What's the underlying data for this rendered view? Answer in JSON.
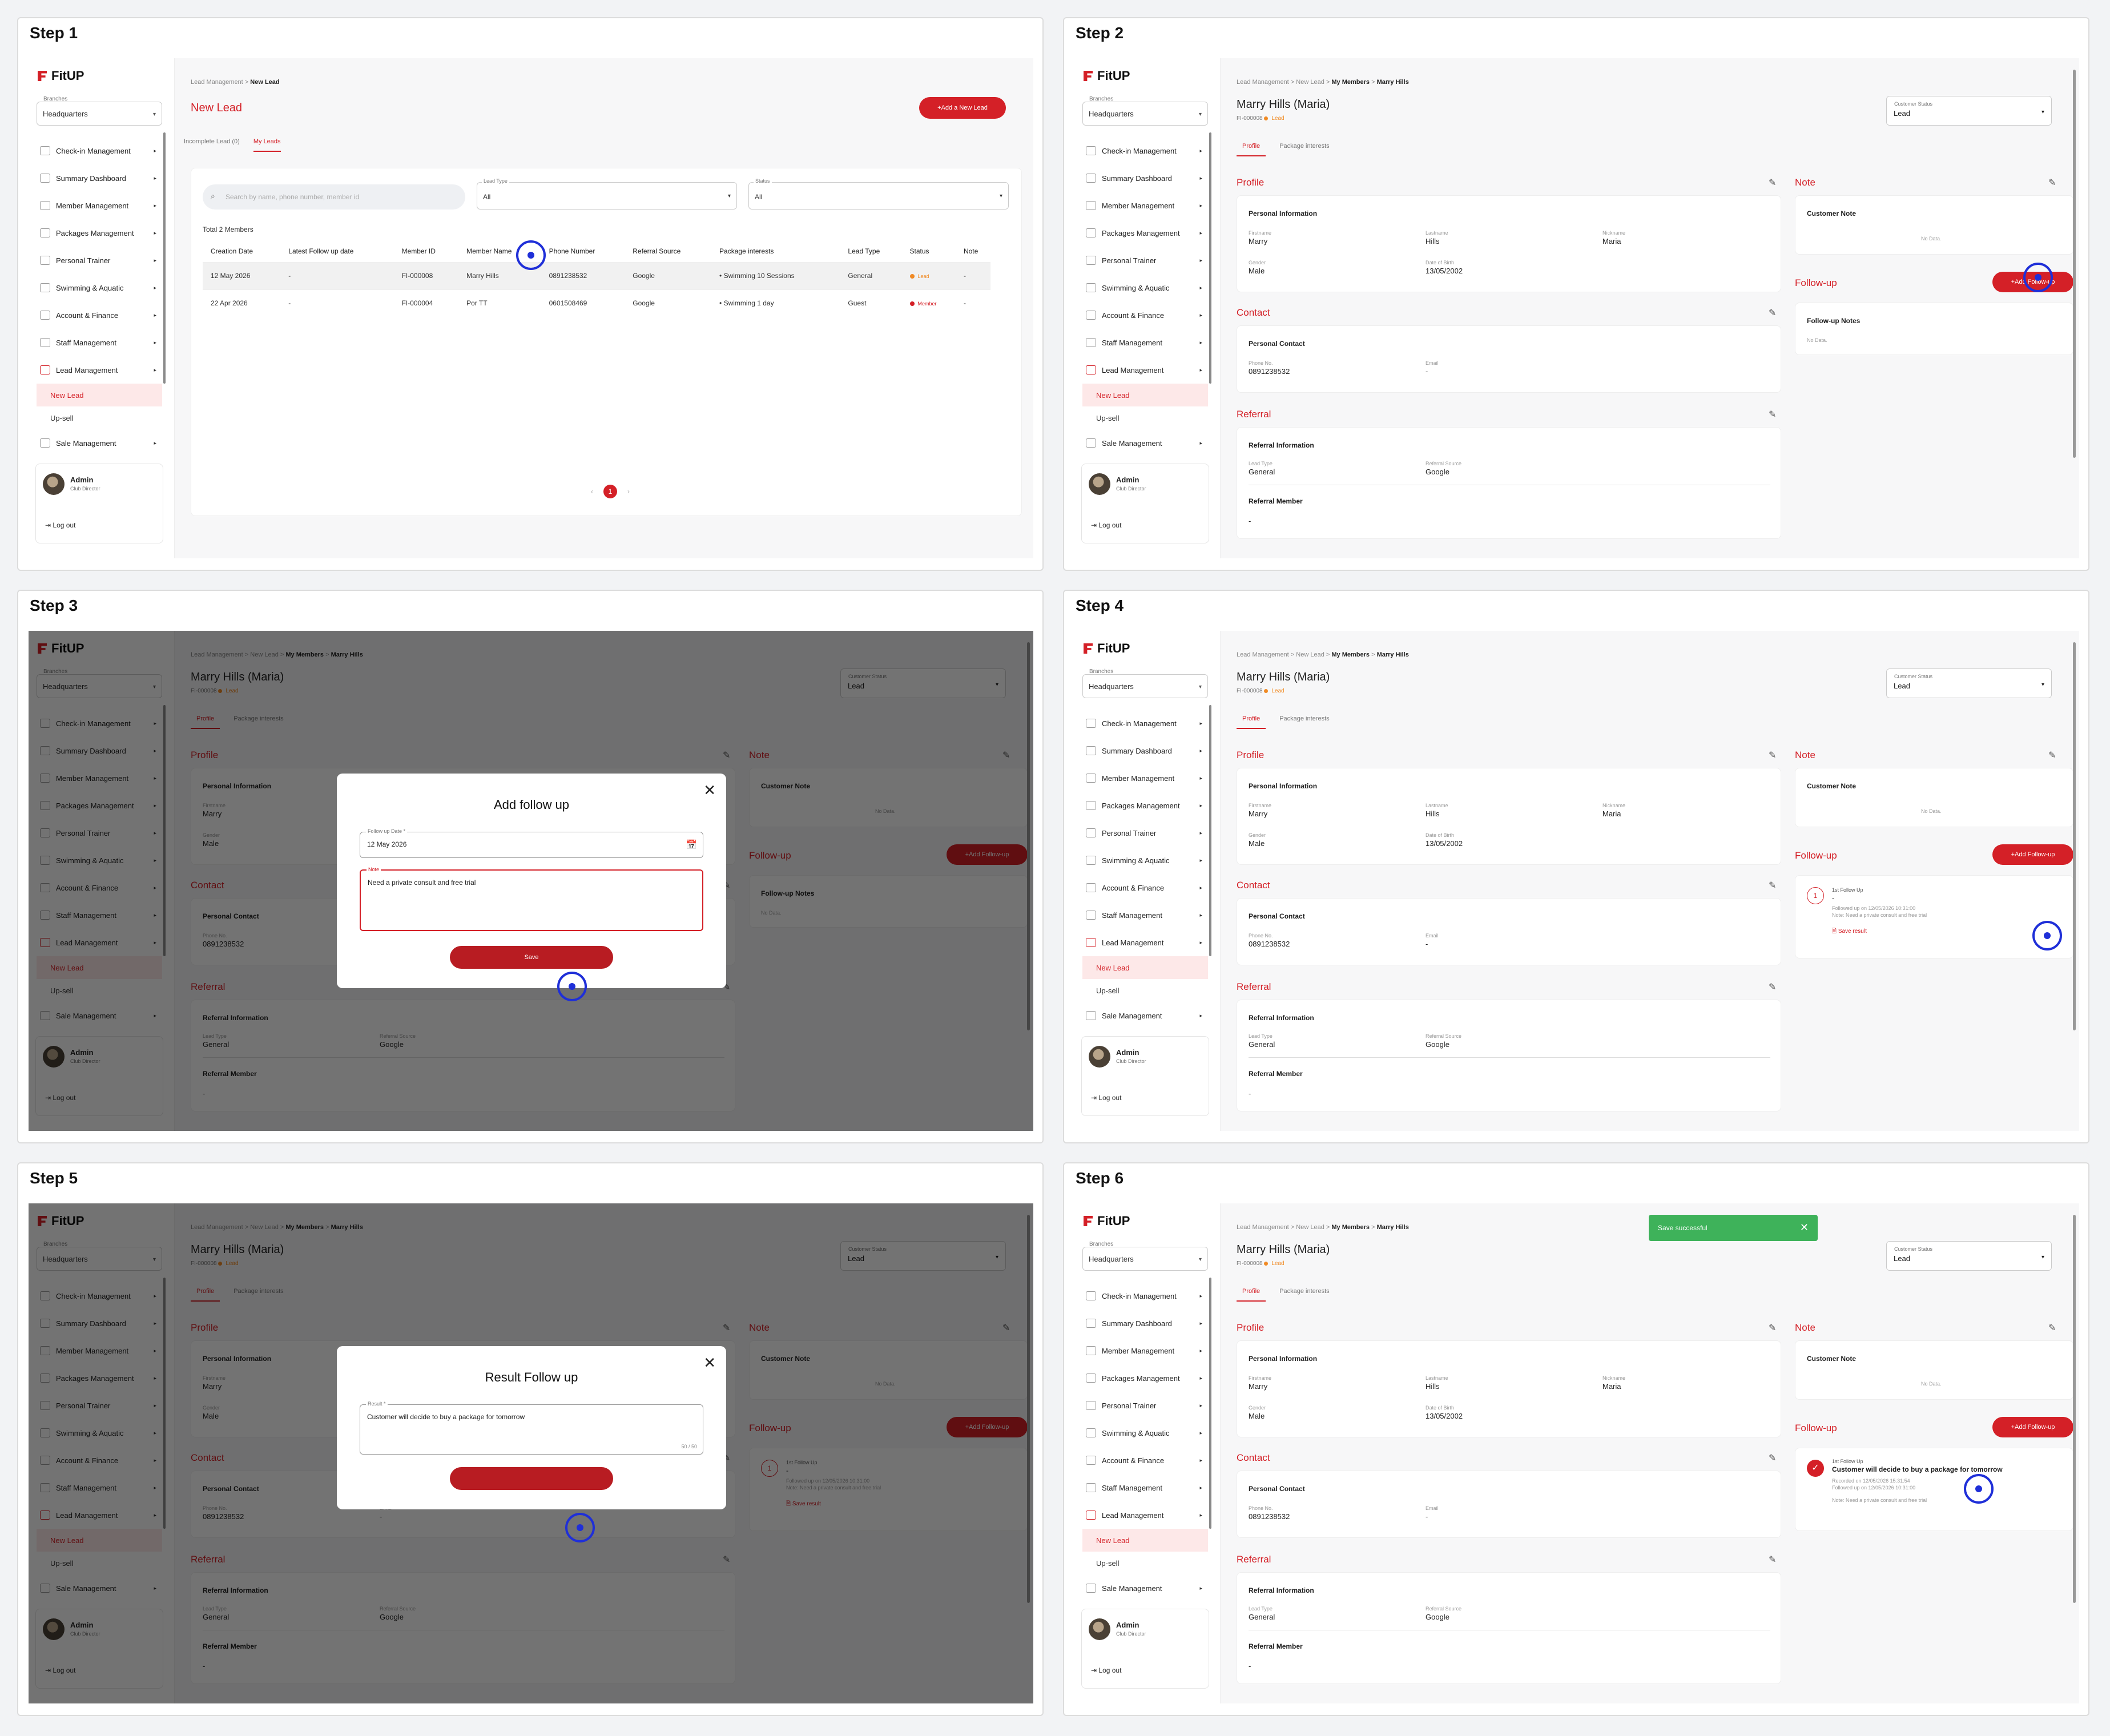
{
  "steps": [
    {
      "title": "Step 1"
    },
    {
      "title": "Step 2"
    },
    {
      "title": "Step 3"
    },
    {
      "title": "Step 4"
    },
    {
      "title": "Step 5"
    },
    {
      "title": "Step 6"
    }
  ],
  "app": {
    "logo": "FitUP",
    "branch_label": "Branches",
    "branch_value": "Headquarters",
    "nav": [
      "Check-in Management",
      "Summary Dashboard",
      "Member Management",
      "Packages Management",
      "Personal Trainer",
      "Swimming & Aquatic",
      "Account & Finance",
      "Staff Management",
      "Lead Management"
    ],
    "nav_sub": [
      "New Lead",
      "Up-sell"
    ],
    "nav_after": "Sale Management",
    "user_name": "Admin",
    "user_role": "Club Director",
    "logout": "Log out"
  },
  "leads": {
    "crumb_root": "Lead Management",
    "crumb_current": "New Lead",
    "title": "New Lead",
    "add_button": "Add a New Lead",
    "tabs": [
      "Incomplete Lead (0)",
      "My Leads"
    ],
    "search_placeholder": "Search by name, phone number, member id",
    "lead_type_label": "Lead Type",
    "lead_type_value": "All",
    "status_label": "Status",
    "status_value": "All",
    "total": "Total 2 Members",
    "columns": [
      "Creation Date",
      "Latest Follow up date",
      "Member ID",
      "Member Name",
      "Phone Number",
      "Referral Source",
      "Package interests",
      "Lead Type",
      "Status",
      "Note"
    ],
    "rows": [
      [
        "12 May 2026",
        "-",
        "FI-000008",
        "Marry Hills",
        "0891238532",
        "Google",
        "Swimming 10 Sessions",
        "General",
        "Lead",
        "-"
      ],
      [
        "22 Apr 2026",
        "-",
        "FI-000004",
        "Por TT",
        "0601508469",
        "Google",
        "Swimming 1 day",
        "Guest",
        "Member",
        "-"
      ]
    ],
    "page": "1"
  },
  "member": {
    "crumb": [
      "Lead Management",
      "New Lead",
      "My Members",
      "Marry Hills"
    ],
    "name": "Marry Hills (Maria)",
    "id": "FI-000008",
    "status": "Lead",
    "cs_label": "Customer Status",
    "cs_value": "Lead",
    "tabs": [
      "Profile",
      "Package interests"
    ],
    "profile_head": "Profile",
    "personal_info": "Personal Information",
    "firstname_lbl": "Firstname",
    "firstname": "Marry",
    "lastname_lbl": "Lastname",
    "lastname": "Hills",
    "nickname_lbl": "Nickname",
    "nickname": "Maria",
    "gender_lbl": "Gender",
    "gender": "Male",
    "dob_lbl": "Date of Birth",
    "dob": "13/05/2002",
    "contact_head": "Contact",
    "personal_contact": "Personal Contact",
    "phone_lbl": "Phone No.",
    "phone": "0891238532",
    "email_lbl": "Email",
    "email": "-",
    "referral_head": "Referral",
    "referral_info": "Referral Information",
    "lead_type_lbl": "Lead Type",
    "lead_type": "General",
    "ref_source_lbl": "Referral Source",
    "ref_source": "Google",
    "referral_member": "Referral Member",
    "referral_member_val": "-",
    "note_head": "Note",
    "customer_note": "Customer Note",
    "no_data": "No Data.",
    "followup_head": "Follow-up",
    "add_followup": "Add Follow-up",
    "followup_notes": "Follow-up Notes",
    "fu1_title": "1st Follow Up",
    "fu1_dash": "-",
    "fu1_followed": "Followed up on 12/05/2026 10:31:00",
    "fu1_note": "Note: Need a private consult and free trial",
    "save_result": "Save result",
    "fu_result": "Customer will decide to buy a package for tomorrow",
    "fu_recorded": "Recorded on 12/05/2026 15:31:54",
    "toast": "Save successful"
  },
  "modal_add": {
    "title": "Add follow up",
    "date_label": "Follow up Date *",
    "date_value": "12 May 2026",
    "note_label": "Note",
    "note_value": "Need a private consult and free trial",
    "save": "Save"
  },
  "modal_result": {
    "title": "Result Follow up",
    "result_label": "Result *",
    "result_value": "Customer will decide to buy a package for tomorrow",
    "counter": "50 / 50"
  },
  "colors": {
    "brand": "#d42027",
    "success": "#3eb25a",
    "click": "#1f2fd8"
  }
}
